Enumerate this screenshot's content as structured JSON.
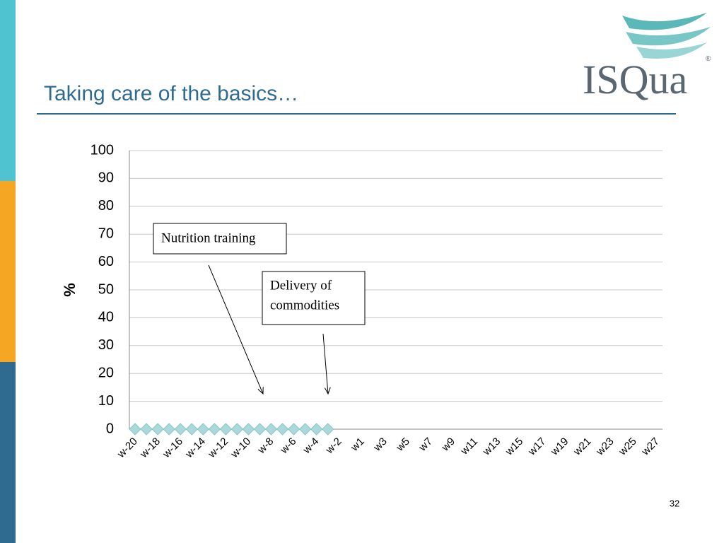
{
  "title": "Taking care of the basics…",
  "logo": {
    "text": "ISQua",
    "mark": "®"
  },
  "page_number": "32",
  "chart_data": {
    "type": "line",
    "y_label": "%",
    "categories": [
      "w-20",
      null,
      "w-18",
      null,
      "w-16",
      null,
      "w-14",
      null,
      "w-12",
      null,
      "w-10",
      null,
      "w-8",
      null,
      "w-6",
      null,
      "w-4",
      null,
      "w-2",
      null,
      "w1",
      null,
      "w3",
      null,
      "w5",
      null,
      "w7",
      null,
      "w9",
      null,
      "w11",
      null,
      "w13",
      null,
      "w15",
      null,
      "w17",
      null,
      "w19",
      null,
      "w21",
      null,
      "w23",
      null,
      "w25",
      null,
      "w27"
    ],
    "values": [
      0,
      0,
      0,
      0,
      0,
      0,
      0,
      0,
      0,
      0,
      0,
      0,
      0,
      0,
      0,
      0,
      0,
      0,
      null,
      null,
      null,
      null,
      null,
      null,
      null,
      null,
      null,
      null,
      null,
      null,
      null,
      null,
      null,
      null,
      null,
      null,
      null,
      null,
      null,
      null,
      null,
      null,
      null,
      null,
      null,
      null,
      null
    ],
    "color": "#a9d9d8",
    "ylim": [
      0,
      100
    ],
    "yticks": [
      0,
      10,
      20,
      30,
      40,
      50,
      60,
      70,
      80,
      90,
      100
    ],
    "grid": true,
    "annotations": [
      {
        "lines": [
          "Nutrition training"
        ]
      },
      {
        "lines": [
          "Delivery of",
          "commodities"
        ]
      }
    ]
  }
}
